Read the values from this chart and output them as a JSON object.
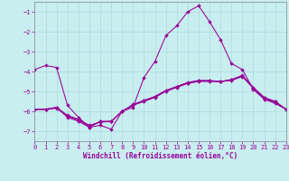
{
  "xlabel": "Windchill (Refroidissement éolien,°C)",
  "xlim": [
    0,
    23
  ],
  "ylim": [
    -7.5,
    -0.5
  ],
  "yticks": [
    -7,
    -6,
    -5,
    -4,
    -3,
    -2,
    -1
  ],
  "xticks": [
    0,
    1,
    2,
    3,
    4,
    5,
    6,
    7,
    8,
    9,
    10,
    11,
    12,
    13,
    14,
    15,
    16,
    17,
    18,
    19,
    20,
    21,
    22,
    23
  ],
  "bg_color": "#c8eef0",
  "grid_color": "#aadddd",
  "line_color": "#990099",
  "line1_y": [
    -3.9,
    -3.7,
    -3.8,
    -5.7,
    -6.3,
    -6.8,
    -6.7,
    -6.9,
    -6.0,
    -5.8,
    -4.3,
    -3.5,
    -2.2,
    -1.7,
    -1.0,
    -0.7,
    -1.5,
    -2.4,
    -3.6,
    -3.9,
    -4.9,
    -5.4,
    -5.6,
    -5.9
  ],
  "line2_y": [
    -5.9,
    -5.9,
    -5.8,
    -6.3,
    -6.5,
    -6.8,
    -6.5,
    -6.5,
    -6.0,
    -5.7,
    -5.5,
    -5.3,
    -5.0,
    -4.8,
    -4.6,
    -4.5,
    -4.5,
    -4.5,
    -4.4,
    -4.2,
    -4.8,
    -5.3,
    -5.5,
    -5.9
  ],
  "line3_y": [
    -5.9,
    -5.9,
    -5.8,
    -6.2,
    -6.4,
    -6.7,
    -6.55,
    -6.5,
    -6.0,
    -5.65,
    -5.45,
    -5.25,
    -4.95,
    -4.75,
    -4.55,
    -4.45,
    -4.45,
    -4.5,
    -4.45,
    -4.25,
    -4.85,
    -5.35,
    -5.55,
    -5.9
  ],
  "line4_y": [
    -5.9,
    -5.9,
    -5.85,
    -6.25,
    -6.45,
    -6.75,
    -6.52,
    -6.52,
    -6.0,
    -5.68,
    -5.47,
    -5.28,
    -4.97,
    -4.77,
    -4.57,
    -4.47,
    -4.47,
    -4.52,
    -4.42,
    -4.22,
    -4.82,
    -5.32,
    -5.52,
    -5.9
  ]
}
